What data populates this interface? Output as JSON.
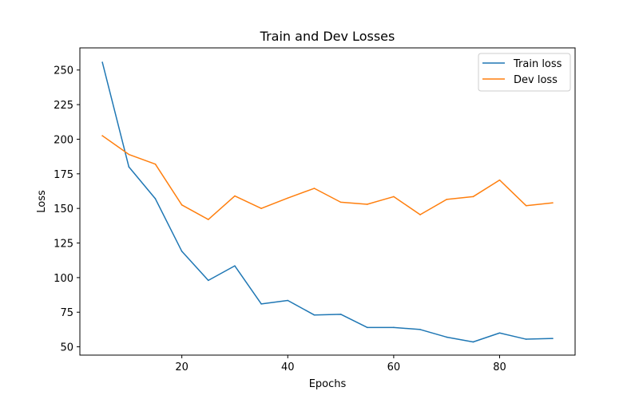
{
  "chart_data": {
    "type": "line",
    "title": "Train and Dev Losses",
    "xlabel": "Epochs",
    "ylabel": "Loss",
    "xlim": [
      0.75,
      94.25
    ],
    "ylim": [
      44,
      266
    ],
    "xticks": [
      20,
      40,
      60,
      80
    ],
    "yticks": [
      50,
      75,
      100,
      125,
      150,
      175,
      200,
      225,
      250
    ],
    "grid": false,
    "legend_position": "top-right",
    "x": [
      5,
      10,
      15,
      20,
      25,
      30,
      35,
      40,
      45,
      50,
      55,
      60,
      65,
      70,
      75,
      80,
      85,
      90
    ],
    "series": [
      {
        "name": "Train loss",
        "color": "#1f77b4",
        "values": [
          255.5,
          180,
          157,
          119,
          98,
          108.5,
          81,
          83.5,
          73,
          73.5,
          64,
          64,
          62.5,
          57,
          53.5,
          60,
          55.5,
          56
        ]
      },
      {
        "name": "Dev loss",
        "color": "#ff7f0e",
        "values": [
          202.5,
          189,
          182,
          152.5,
          142,
          159,
          150,
          157.5,
          164.5,
          154.5,
          153,
          158.5,
          145.5,
          156.5,
          158.5,
          170.5,
          152,
          154
        ]
      }
    ]
  }
}
